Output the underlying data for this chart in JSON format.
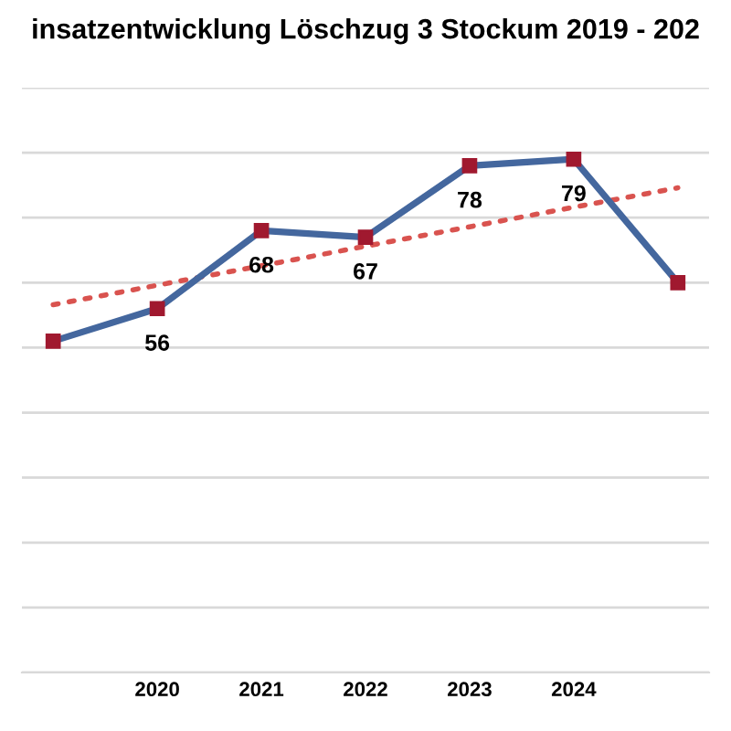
{
  "chart_data": {
    "type": "line",
    "title": "insatzentwicklung Löschzug 3 Stockum 2019 - 202",
    "categories": [
      null,
      "2020",
      "2021",
      "2022",
      "2023",
      "2024",
      null
    ],
    "series": [
      {
        "color": "#44679e",
        "values": [
          51,
          56,
          68,
          67,
          78,
          79,
          60
        ],
        "value_labels": [
          null,
          "56",
          "68",
          "67",
          "78",
          "79",
          null
        ],
        "marker": "square",
        "line_style": "solid"
      },
      {
        "type": "line",
        "color": "#d9534f",
        "values": [
          56.6,
          59.6,
          62.6,
          65.6,
          68.6,
          71.6,
          74.6
        ],
        "line_style": "dotted",
        "marker": "none"
      }
    ],
    "ylim": [
      0,
      90
    ],
    "yticks": [
      {
        "value": 0,
        "label": null
      },
      {
        "value": 10,
        "label": null
      },
      {
        "value": 20,
        "label": null
      },
      {
        "value": 30,
        "label": null
      },
      {
        "value": 40,
        "label": null
      },
      {
        "value": 50,
        "label": null
      },
      {
        "value": 60,
        "label": null
      },
      {
        "value": 70,
        "label": null
      },
      {
        "value": 80,
        "label": null
      },
      {
        "value": 90,
        "label": null
      }
    ],
    "grid": "y",
    "legend": false,
    "tick_labels": "x"
  }
}
